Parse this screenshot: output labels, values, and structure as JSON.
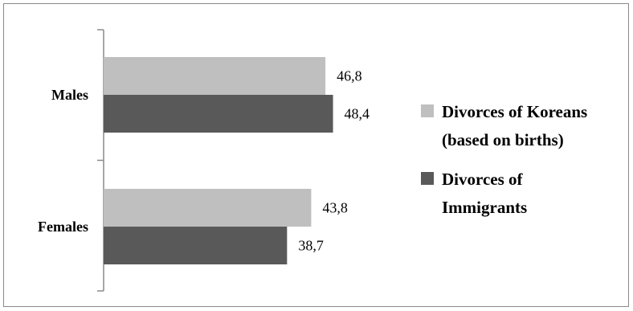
{
  "chart_data": {
    "type": "bar",
    "orientation": "horizontal",
    "categories": [
      "Males",
      "Females"
    ],
    "series": [
      {
        "name": "Divorces of Koreans (based on births)",
        "legend_lines": [
          "Divorces of Koreans",
          "(based on births)"
        ],
        "values": [
          46.8,
          43.8
        ],
        "labels": [
          "46,8",
          "43,8"
        ],
        "color": "#bfbfbf"
      },
      {
        "name": "Divorces of Immigrants",
        "legend_lines": [
          "Divorces of",
          "Immigrants"
        ],
        "values": [
          48.4,
          38.7
        ],
        "labels": [
          "48,4",
          "38,7"
        ],
        "color": "#595959"
      }
    ],
    "title": "",
    "xlabel": "",
    "ylabel": "",
    "xlim": [
      0,
      100
    ],
    "grid": false,
    "legend_position": "right",
    "axis_line_color": "#8a8a8a"
  }
}
